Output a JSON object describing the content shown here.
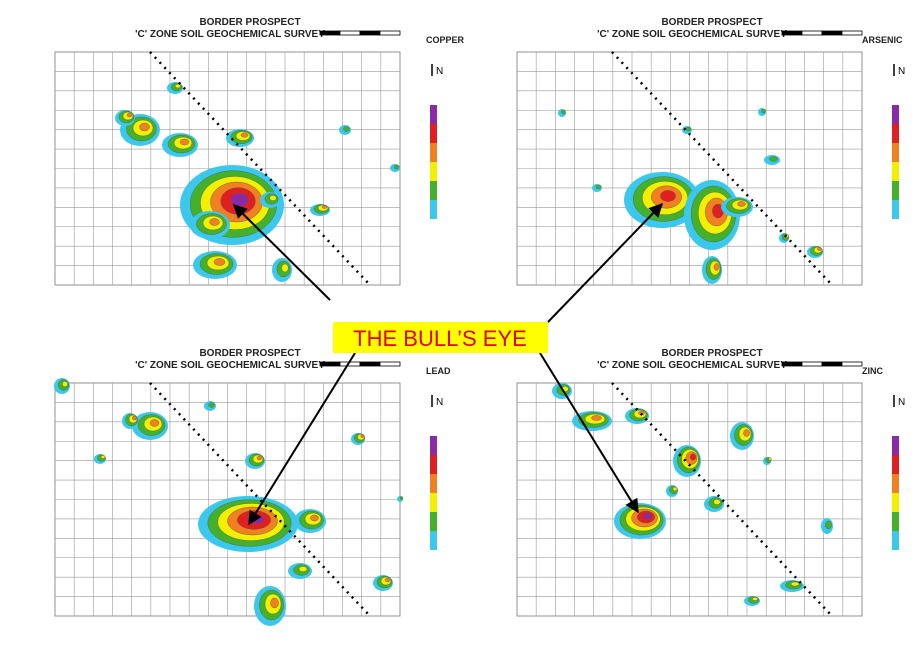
{
  "panels": [
    {
      "title": "BORDER PROSPECT",
      "subtitle": "'C' ZONE SOIL GEOCHEMICAL SURVEY",
      "element": "COPPER",
      "north": "N"
    },
    {
      "title": "BORDER PROSPECT",
      "subtitle": "'C' ZONE SOIL GEOCHEMICAL SURVEY",
      "element": "ARSENIC",
      "north": "N"
    },
    {
      "title": "BORDER PROSPECT",
      "subtitle": "'C' ZONE SOIL GEOCHEMICAL SURVEY",
      "element": "LEAD",
      "north": "N"
    },
    {
      "title": "BORDER PROSPECT",
      "subtitle": "'C' ZONE SOIL GEOCHEMICAL SURVEY",
      "element": "ZINC",
      "north": "N"
    }
  ],
  "callout": "THE BULL’S EYE"
}
